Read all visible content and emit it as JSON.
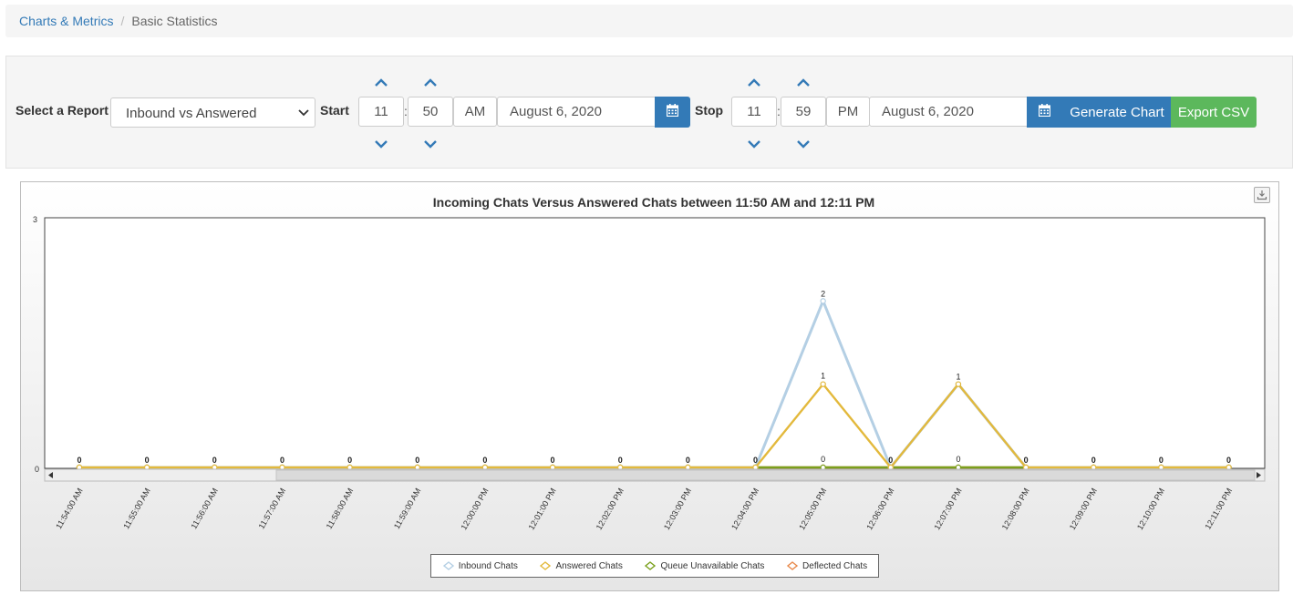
{
  "breadcrumb": {
    "root": "Charts & Metrics",
    "separator": "/",
    "current": "Basic Statistics"
  },
  "controls": {
    "select_report_label": "Select a Report",
    "report_selected": "Inbound vs Answered",
    "start_label": "Start",
    "start_hour": "11",
    "start_minute": "50",
    "start_ampm": "AM",
    "start_date": "August 6, 2020",
    "stop_label": "Stop",
    "stop_hour": "11",
    "stop_minute": "59",
    "stop_ampm": "PM",
    "stop_date": "August 6, 2020",
    "time_separator": ":",
    "generate_label": "Generate Chart",
    "export_label": "Export CSV",
    "calendar_icon": "calendar-icon",
    "up_icon": "chevron-up-icon",
    "down_icon": "chevron-down-icon"
  },
  "colors": {
    "primary": "#337ab7",
    "success": "#5cb85c",
    "inbound": "#b4cfe4",
    "answered": "#e3b93c",
    "queue": "#7aa01c",
    "deflected": "#e8894b"
  },
  "chart_data": {
    "type": "line",
    "title": "Incoming Chats Versus Answered Chats between 11:50 AM and 12:11 PM",
    "x": [
      "11:54:00 AM",
      "11:55:00 AM",
      "11:56:00 AM",
      "11:57:00 AM",
      "11:58:00 AM",
      "11:59:00 AM",
      "12:00:00 PM",
      "12:01:00 PM",
      "12:02:00 PM",
      "12:03:00 PM",
      "12:04:00 PM",
      "12:05:00 PM",
      "12:06:00 PM",
      "12:07:00 PM",
      "12:08:00 PM",
      "12:09:00 PM",
      "12:10:00 PM",
      "12:11:00 PM"
    ],
    "ylim": [
      0,
      3
    ],
    "y_ticks": [
      "0",
      "3"
    ],
    "series": [
      {
        "name": "Inbound Chats",
        "values": [
          0,
          0,
          0,
          0,
          0,
          0,
          0,
          0,
          0,
          0,
          0,
          2,
          0,
          1,
          0,
          0,
          0,
          0
        ]
      },
      {
        "name": "Answered Chats",
        "values": [
          0,
          0,
          0,
          0,
          0,
          0,
          0,
          0,
          0,
          0,
          0,
          1,
          0,
          1,
          0,
          0,
          0,
          0
        ]
      },
      {
        "name": "Queue Unavailable Chats",
        "values": [
          0,
          0,
          0,
          0,
          0,
          0,
          0,
          0,
          0,
          0,
          0,
          0,
          0,
          0,
          0,
          0,
          0,
          0
        ]
      },
      {
        "name": "Deflected Chats",
        "values": [
          0,
          0,
          0,
          0,
          0,
          0,
          0,
          0,
          0,
          0,
          0,
          0,
          0,
          0,
          0,
          0,
          0,
          0
        ]
      }
    ],
    "point_labels": {
      "top": [
        "0",
        "0",
        "0",
        "0",
        "0",
        "0",
        "0",
        "0",
        "0",
        "0",
        "0",
        "2",
        "0",
        "1",
        "0",
        "0",
        "0",
        "0"
      ],
      "mid": [
        "",
        "",
        "",
        "",
        "",
        "",
        "",
        "",
        "",
        "",
        "",
        "1",
        "",
        "",
        "",
        "",
        "",
        ""
      ],
      "base": [
        "",
        "",
        "",
        "",
        "",
        "",
        "",
        "",
        "",
        "",
        "",
        "0",
        "",
        "0",
        "",
        "",
        "",
        ""
      ]
    },
    "legend_position": "bottom",
    "grid": false,
    "scrollbar": true
  }
}
